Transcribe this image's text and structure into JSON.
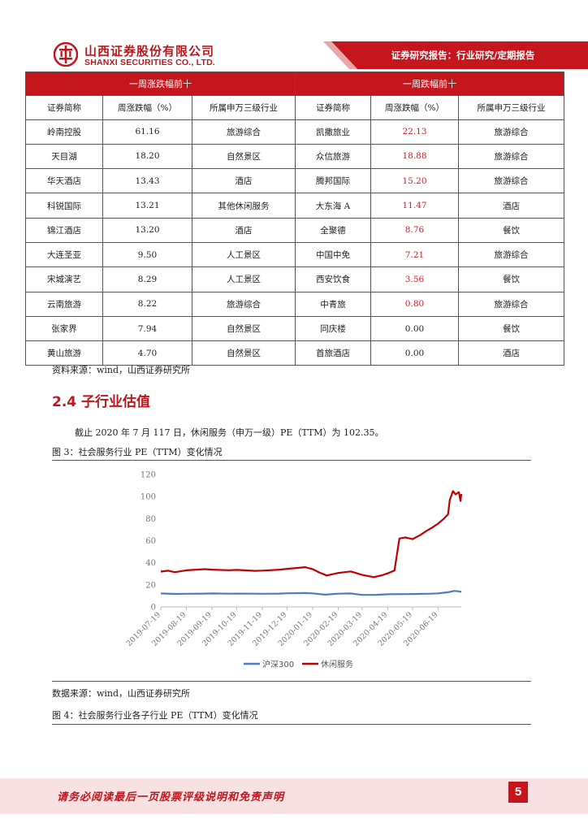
{
  "header": {
    "company_cn": "山西证券股份有限公司",
    "company_en": "SHANXI SECURITIES CO., LTD.",
    "report_type": "证券研究报告：行业研究/定期报告"
  },
  "table": {
    "gainers_title": "一周涨跌幅前十",
    "losers_title": "一周跌幅前十",
    "col_name": "证券简称",
    "col_change": "周涨跌幅（%）",
    "col_industry": "所属申万三级行业",
    "rows": [
      {
        "ln": "岭南控股",
        "lc": "61.16",
        "li": "旅游综合",
        "rn": "凯撒旅业",
        "rc": "22.13",
        "ri": "旅游综合"
      },
      {
        "ln": "天目湖",
        "lc": "18.20",
        "li": "自然景区",
        "rn": "众信旅游",
        "rc": "18.88",
        "ri": "旅游综合"
      },
      {
        "ln": "华天酒店",
        "lc": "13.43",
        "li": "酒店",
        "rn": "腾邦国际",
        "rc": "15.20",
        "ri": "旅游综合"
      },
      {
        "ln": "科锐国际",
        "lc": "13.21",
        "li": "其他休闲服务",
        "rn": "大东海 A",
        "rc": "11.47",
        "ri": "酒店"
      },
      {
        "ln": "锦江酒店",
        "lc": "13.20",
        "li": "酒店",
        "rn": "全聚德",
        "rc": "8.76",
        "ri": "餐饮"
      },
      {
        "ln": "大连圣亚",
        "lc": "9.50",
        "li": "人工景区",
        "rn": "中国中免",
        "rc": "7.21",
        "ri": "旅游综合"
      },
      {
        "ln": "宋城演艺",
        "lc": "8.29",
        "li": "人工景区",
        "rn": "西安饮食",
        "rc": "3.56",
        "ri": "餐饮"
      },
      {
        "ln": "云南旅游",
        "lc": "8.22",
        "li": "旅游综合",
        "rn": "中青旅",
        "rc": "0.80",
        "ri": "旅游综合"
      },
      {
        "ln": "张家界",
        "lc": "7.94",
        "li": "自然景区",
        "rn": "同庆楼",
        "rc": "0.00",
        "ri": "餐饮"
      },
      {
        "ln": "黄山旅游",
        "lc": "4.70",
        "li": "自然景区",
        "rn": "首旅酒店",
        "rc": "0.00",
        "ri": "酒店"
      }
    ],
    "red_right_rows": 8
  },
  "source1": "资料来源：wind，山西证券研究所",
  "section_title": "2.4 子行业估值",
  "paragraph": "截止 2020 年 7 月 117 日，休闲服务（申万一级）PE（TTM）为 102.35。",
  "figure3_caption": "图 3：社会服务行业 PE（TTM）变化情况",
  "source2": "数据来源：wind，山西证券研究所",
  "figure4_caption": "图 4：社会服务行业各子行业 PE（TTM）变化情况",
  "footer_text": "请务必阅读最后一页股票评级说明和免责声明",
  "page_number": "5",
  "colors": {
    "brand_red": "#c0161c",
    "hs300_blue": "#4a7ebb",
    "leisure_red": "#c00000"
  },
  "chart_data": {
    "type": "line",
    "ylim": [
      0,
      120
    ],
    "y_ticks": [
      "0",
      "20",
      "40",
      "60",
      "80",
      "100",
      "120"
    ],
    "x_ticks": [
      "2019-07-19",
      "2019-08-19",
      "2019-09-19",
      "2019-10-19",
      "2019-11-19",
      "2019-12-19",
      "2020-01-19",
      "2020-02-19",
      "2020-03-19",
      "2020-04-19",
      "2020-05-19",
      "2020-06-19"
    ],
    "x_start": "2019-07-19",
    "x_end": "2020-07-17",
    "legend_position": "bottom",
    "series": [
      {
        "name": "沪深300",
        "color": "#4a7ebb",
        "points": [
          [
            "2019-07-19",
            12.2
          ],
          [
            "2019-08-05",
            11.8
          ],
          [
            "2019-08-19",
            11.9
          ],
          [
            "2019-09-10",
            12.1
          ],
          [
            "2019-09-19",
            12.2
          ],
          [
            "2019-10-10",
            12.0
          ],
          [
            "2019-10-19",
            12.1
          ],
          [
            "2019-11-10",
            12.0
          ],
          [
            "2019-11-19",
            11.9
          ],
          [
            "2019-12-10",
            12.1
          ],
          [
            "2019-12-19",
            12.4
          ],
          [
            "2020-01-10",
            12.6
          ],
          [
            "2020-01-19",
            12.3
          ],
          [
            "2020-02-03",
            11.1
          ],
          [
            "2020-02-19",
            12.0
          ],
          [
            "2020-03-05",
            12.2
          ],
          [
            "2020-03-19",
            10.9
          ],
          [
            "2020-04-05",
            11.0
          ],
          [
            "2020-04-19",
            11.5
          ],
          [
            "2020-05-10",
            11.6
          ],
          [
            "2020-05-19",
            11.7
          ],
          [
            "2020-06-10",
            12.0
          ],
          [
            "2020-06-19",
            12.3
          ],
          [
            "2020-07-01",
            13.3
          ],
          [
            "2020-07-08",
            14.5
          ],
          [
            "2020-07-13",
            14.2
          ],
          [
            "2020-07-17",
            13.6
          ]
        ]
      },
      {
        "name": "休闲服务",
        "color": "#c00000",
        "points": [
          [
            "2019-07-19",
            32.0
          ],
          [
            "2019-07-28",
            32.8
          ],
          [
            "2019-08-05",
            31.5
          ],
          [
            "2019-08-19",
            33.2
          ],
          [
            "2019-09-10",
            34.2
          ],
          [
            "2019-09-19",
            33.8
          ],
          [
            "2019-10-10",
            33.3
          ],
          [
            "2019-10-19",
            33.6
          ],
          [
            "2019-11-10",
            32.7
          ],
          [
            "2019-11-19",
            32.9
          ],
          [
            "2019-12-10",
            33.8
          ],
          [
            "2019-12-19",
            34.5
          ],
          [
            "2020-01-10",
            36.0
          ],
          [
            "2020-01-19",
            34.2
          ],
          [
            "2020-01-27",
            31.2
          ],
          [
            "2020-02-05",
            28.5
          ],
          [
            "2020-02-19",
            30.8
          ],
          [
            "2020-03-05",
            32.2
          ],
          [
            "2020-03-19",
            29.0
          ],
          [
            "2020-04-02",
            27.0
          ],
          [
            "2020-04-12",
            28.7
          ],
          [
            "2020-04-19",
            30.5
          ],
          [
            "2020-04-27",
            33.0
          ],
          [
            "2020-05-03",
            62.0
          ],
          [
            "2020-05-10",
            63.0
          ],
          [
            "2020-05-19",
            61.5
          ],
          [
            "2020-05-28",
            65.0
          ],
          [
            "2020-06-05",
            69.0
          ],
          [
            "2020-06-12",
            72.0
          ],
          [
            "2020-06-19",
            75.5
          ],
          [
            "2020-06-26",
            80.0
          ],
          [
            "2020-07-01",
            84.0
          ],
          [
            "2020-07-03",
            97.0
          ],
          [
            "2020-07-07",
            105.0
          ],
          [
            "2020-07-10",
            102.0
          ],
          [
            "2020-07-14",
            104.0
          ],
          [
            "2020-07-16",
            96.0
          ],
          [
            "2020-07-17",
            102.35
          ]
        ]
      }
    ]
  }
}
